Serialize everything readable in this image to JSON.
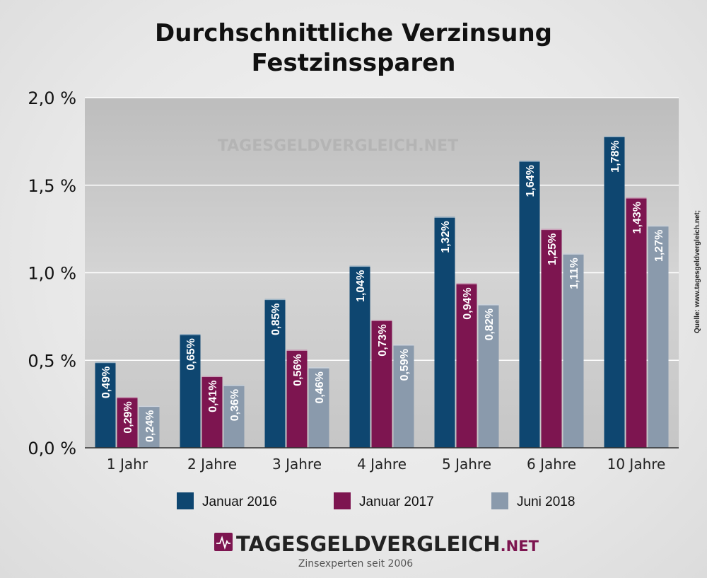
{
  "chart_data": {
    "type": "bar",
    "title_lines": [
      "Durchschnittliche Verzinsung",
      "Festzinssparen"
    ],
    "categories": [
      "1 Jahr",
      "2 Jahre",
      "3 Jahre",
      "4 Jahre",
      "5 Jahre",
      "6 Jahre",
      "10 Jahre"
    ],
    "series": [
      {
        "name": "Januar 2016",
        "color": "#0e4670",
        "values": [
          0.49,
          0.65,
          0.85,
          1.04,
          1.32,
          1.64,
          1.78
        ],
        "labels": [
          "0,49%",
          "0,65%",
          "0,85%",
          "1,04%",
          "1,32%",
          "1,64%",
          "1,78%"
        ]
      },
      {
        "name": "Januar 2017",
        "color": "#7d1550",
        "values": [
          0.29,
          0.41,
          0.56,
          0.73,
          0.94,
          1.25,
          1.43
        ],
        "labels": [
          "0,29%",
          "0,41%",
          "0,56%",
          "0,73%",
          "0,94%",
          "1,25%",
          "1,43%"
        ]
      },
      {
        "name": "Juni 2018",
        "color": "#8a9aac",
        "values": [
          0.24,
          0.36,
          0.46,
          0.59,
          0.82,
          1.11,
          1.27
        ],
        "labels": [
          "0,24%",
          "0,36%",
          "0,46%",
          "0,59%",
          "0,82%",
          "1,11%",
          "1,27%"
        ]
      }
    ],
    "ylim": [
      0,
      2.0
    ],
    "yticks": [
      0,
      0.5,
      1.0,
      1.5,
      2.0
    ],
    "ytick_labels": [
      "0,0 %",
      "0,5 %",
      "1,0 %",
      "1,5 %",
      "2,0 %"
    ],
    "grid": true,
    "legend_position": "bottom",
    "source_note": "Quelle: www.tagesgeldvergleich.net;",
    "watermark": "TAGESGELDVERGLEICH.NET"
  },
  "brand": {
    "name_main": "TAGESGELDVERGLEICH",
    "name_suffix": ".NET",
    "tagline": "Zinsexperten seit 2006"
  },
  "colors": {
    "plot_bg": "#c8c8c8",
    "grid": "#ffffff",
    "brand_dark": "#222222",
    "brand_accent": "#7d1550"
  }
}
